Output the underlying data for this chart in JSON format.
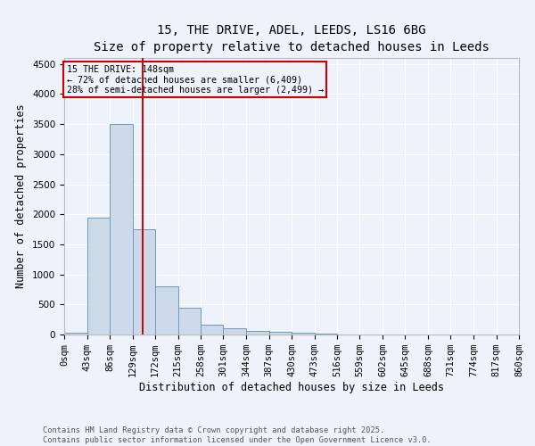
{
  "title_line1": "15, THE DRIVE, ADEL, LEEDS, LS16 6BG",
  "title_line2": "Size of property relative to detached houses in Leeds",
  "xlabel": "Distribution of detached houses by size in Leeds",
  "ylabel": "Number of detached properties",
  "bar_color": "#ccd9e8",
  "bar_edge_color": "#7099bb",
  "background_color": "#eef2fb",
  "grid_color": "white",
  "vline_x": 148,
  "vline_color": "#bb1111",
  "annotation_text": "15 THE DRIVE: 148sqm\n← 72% of detached houses are smaller (6,409)\n28% of semi-detached houses are larger (2,499) →",
  "annotation_box_color": "#cc0000",
  "bin_edges": [
    0,
    43,
    86,
    129,
    172,
    215,
    258,
    301,
    344,
    387,
    430,
    473,
    516,
    559,
    602,
    645,
    688,
    731,
    774,
    817,
    860
  ],
  "bar_heights": [
    25,
    1950,
    3500,
    1750,
    800,
    450,
    160,
    100,
    65,
    50,
    25,
    10,
    4,
    2,
    1,
    1,
    0,
    0,
    0,
    0
  ],
  "ylim": [
    0,
    4600
  ],
  "yticks": [
    0,
    500,
    1000,
    1500,
    2000,
    2500,
    3000,
    3500,
    4000,
    4500
  ],
  "xtick_labels": [
    "0sqm",
    "43sqm",
    "86sqm",
    "129sqm",
    "172sqm",
    "215sqm",
    "258sqm",
    "301sqm",
    "344sqm",
    "387sqm",
    "430sqm",
    "473sqm",
    "516sqm",
    "559sqm",
    "602sqm",
    "645sqm",
    "688sqm",
    "731sqm",
    "774sqm",
    "817sqm",
    "860sqm"
  ],
  "footnote": "Contains HM Land Registry data © Crown copyright and database right 2025.\nContains public sector information licensed under the Open Government Licence v3.0.",
  "title_fontsize": 10,
  "subtitle_fontsize": 9,
  "label_fontsize": 8.5,
  "tick_fontsize": 7.5,
  "footnote_fontsize": 6.2
}
